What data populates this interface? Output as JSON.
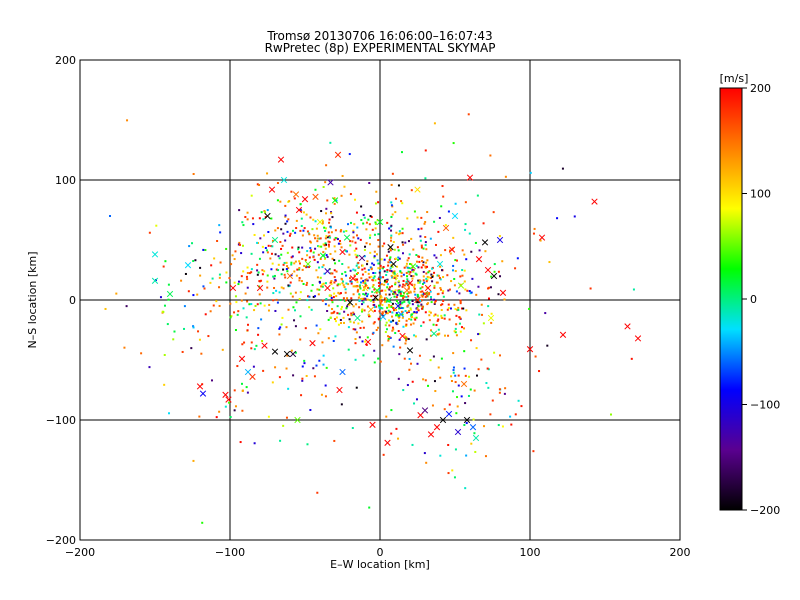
{
  "chart_data": {
    "type": "scatter",
    "title": "Tromsø 20130706 16:06:00–16:07:43",
    "subtitle": "RwPretec (8p) EXPERIMENTAL SKYMAP",
    "xlabel": "E–W location [km]",
    "ylabel": "N–S location [km]",
    "xlim": [
      -200,
      200
    ],
    "ylim": [
      -200,
      200
    ],
    "xticks": [
      -200,
      -100,
      0,
      100,
      200
    ],
    "yticks": [
      -200,
      -100,
      0,
      100,
      200
    ],
    "xtick_labels": [
      "−200",
      "−100",
      "0",
      "100",
      "200"
    ],
    "ytick_labels": [
      "−200",
      "−100",
      "0",
      "100",
      "200"
    ],
    "grid": true,
    "colorbar": {
      "label": "[m/s]",
      "range": [
        -200,
        200
      ],
      "ticks": [
        -200,
        -100,
        0,
        100,
        200
      ],
      "tick_labels": [
        "−200",
        "−100",
        "0",
        "100",
        "200"
      ],
      "colors": [
        "#000000",
        "#5a0090",
        "#0000ff",
        "#00e0ff",
        "#00ff00",
        "#ffff00",
        "#ff8000",
        "#ff0000"
      ]
    },
    "points": [
      {
        "x": -180,
        "y": 70,
        "v": -60,
        "m": "dot"
      },
      {
        "x": -150,
        "y": 38,
        "v": -20,
        "m": "x"
      },
      {
        "x": -150,
        "y": 16,
        "v": -10,
        "m": "x"
      },
      {
        "x": -140,
        "y": 5,
        "v": 10,
        "m": "x"
      },
      {
        "x": -128,
        "y": 29,
        "v": -30,
        "m": "x"
      },
      {
        "x": -120,
        "y": -72,
        "v": 200,
        "m": "x"
      },
      {
        "x": -118,
        "y": -78,
        "v": -90,
        "m": "x"
      },
      {
        "x": -112,
        "y": -67,
        "v": -150,
        "m": "dot"
      },
      {
        "x": -103,
        "y": -79,
        "v": 200,
        "m": "x"
      },
      {
        "x": -101,
        "y": -83,
        "v": 200,
        "m": "x"
      },
      {
        "x": -98,
        "y": 10,
        "v": 200,
        "m": "x"
      },
      {
        "x": -92,
        "y": -49,
        "v": 200,
        "m": "x"
      },
      {
        "x": -88,
        "y": -60,
        "v": -40,
        "m": "x"
      },
      {
        "x": -85,
        "y": -64,
        "v": 180,
        "m": "x"
      },
      {
        "x": -80,
        "y": 10,
        "v": 200,
        "m": "x"
      },
      {
        "x": -77,
        "y": -38,
        "v": 200,
        "m": "x"
      },
      {
        "x": -72,
        "y": 92,
        "v": 200,
        "m": "x"
      },
      {
        "x": -70,
        "y": -43,
        "v": -200,
        "m": "x"
      },
      {
        "x": -66,
        "y": 117,
        "v": 200,
        "m": "x"
      },
      {
        "x": -64,
        "y": 100,
        "v": -20,
        "m": "x"
      },
      {
        "x": -62,
        "y": -45,
        "v": -200,
        "m": "x"
      },
      {
        "x": -58,
        "y": -45,
        "v": -180,
        "m": "x"
      },
      {
        "x": -56,
        "y": 88,
        "v": 150,
        "m": "x"
      },
      {
        "x": -55,
        "y": -100,
        "v": 50,
        "m": "x"
      },
      {
        "x": -54,
        "y": 75,
        "v": 200,
        "m": "x"
      },
      {
        "x": -50,
        "y": 84,
        "v": 200,
        "m": "x"
      },
      {
        "x": -48,
        "y": 30,
        "v": 50,
        "m": "x"
      },
      {
        "x": -45,
        "y": -36,
        "v": 200,
        "m": "x"
      },
      {
        "x": -43,
        "y": 86,
        "v": 160,
        "m": "x"
      },
      {
        "x": -40,
        "y": 65,
        "v": 80,
        "m": "x"
      },
      {
        "x": -38,
        "y": 37,
        "v": 20,
        "m": "x"
      },
      {
        "x": -35,
        "y": 24,
        "v": -120,
        "m": "x"
      },
      {
        "x": -33,
        "y": 98,
        "v": -130,
        "m": "x"
      },
      {
        "x": -30,
        "y": 83,
        "v": 30,
        "m": "x"
      },
      {
        "x": -28,
        "y": 121,
        "v": 180,
        "m": "x"
      },
      {
        "x": -27,
        "y": -75,
        "v": 200,
        "m": "x"
      },
      {
        "x": -25,
        "y": -60,
        "v": -60,
        "m": "x"
      },
      {
        "x": -22,
        "y": 52,
        "v": 10,
        "m": "x"
      },
      {
        "x": -20,
        "y": -2,
        "v": -200,
        "m": "x"
      },
      {
        "x": -18,
        "y": 18,
        "v": 200,
        "m": "x"
      },
      {
        "x": -15,
        "y": -15,
        "v": 0,
        "m": "x"
      },
      {
        "x": -12,
        "y": 35,
        "v": -150,
        "m": "x"
      },
      {
        "x": -10,
        "y": 10,
        "v": 100,
        "m": "x"
      },
      {
        "x": -8,
        "y": -35,
        "v": 200,
        "m": "x"
      },
      {
        "x": -5,
        "y": -104,
        "v": 200,
        "m": "x"
      },
      {
        "x": -3,
        "y": 2,
        "v": -200,
        "m": "x"
      },
      {
        "x": 0,
        "y": 65,
        "v": 20,
        "m": "x"
      },
      {
        "x": 2,
        "y": -14,
        "v": -40,
        "m": "x"
      },
      {
        "x": 5,
        "y": -119,
        "v": 200,
        "m": "x"
      },
      {
        "x": 7,
        "y": 44,
        "v": -200,
        "m": "x"
      },
      {
        "x": 10,
        "y": 20,
        "v": 90,
        "m": "x"
      },
      {
        "x": 12,
        "y": -5,
        "v": -100,
        "m": "x"
      },
      {
        "x": 15,
        "y": -30,
        "v": 200,
        "m": "x"
      },
      {
        "x": 18,
        "y": 8,
        "v": 150,
        "m": "x"
      },
      {
        "x": 20,
        "y": -42,
        "v": -200,
        "m": "x"
      },
      {
        "x": 22,
        "y": 28,
        "v": 40,
        "m": "x"
      },
      {
        "x": 25,
        "y": 92,
        "v": 100,
        "m": "x"
      },
      {
        "x": 27,
        "y": -96,
        "v": 200,
        "m": "x"
      },
      {
        "x": 30,
        "y": -92,
        "v": -150,
        "m": "x"
      },
      {
        "x": 32,
        "y": 10,
        "v": 200,
        "m": "x"
      },
      {
        "x": 34,
        "y": -112,
        "v": 200,
        "m": "x"
      },
      {
        "x": 36,
        "y": -28,
        "v": 0,
        "m": "x"
      },
      {
        "x": 38,
        "y": -106,
        "v": 200,
        "m": "x"
      },
      {
        "x": 40,
        "y": 30,
        "v": -20,
        "m": "x"
      },
      {
        "x": 42,
        "y": -100,
        "v": -200,
        "m": "x"
      },
      {
        "x": 44,
        "y": 60,
        "v": 160,
        "m": "x"
      },
      {
        "x": 46,
        "y": -95,
        "v": -80,
        "m": "x"
      },
      {
        "x": 48,
        "y": 42,
        "v": 200,
        "m": "x"
      },
      {
        "x": 50,
        "y": 70,
        "v": -30,
        "m": "x"
      },
      {
        "x": 52,
        "y": -110,
        "v": -110,
        "m": "x"
      },
      {
        "x": 54,
        "y": 12,
        "v": 60,
        "m": "x"
      },
      {
        "x": 56,
        "y": -70,
        "v": 150,
        "m": "x"
      },
      {
        "x": 58,
        "y": -100,
        "v": -200,
        "m": "x"
      },
      {
        "x": 60,
        "y": 102,
        "v": 200,
        "m": "x"
      },
      {
        "x": 62,
        "y": -106,
        "v": -60,
        "m": "x"
      },
      {
        "x": 64,
        "y": -115,
        "v": -10,
        "m": "x"
      },
      {
        "x": 66,
        "y": 34,
        "v": 200,
        "m": "x"
      },
      {
        "x": 70,
        "y": 48,
        "v": -200,
        "m": "x"
      },
      {
        "x": 72,
        "y": 25,
        "v": 200,
        "m": "x"
      },
      {
        "x": 74,
        "y": -15,
        "v": 80,
        "m": "x"
      },
      {
        "x": 76,
        "y": 20,
        "v": -200,
        "m": "x"
      },
      {
        "x": 80,
        "y": 50,
        "v": -100,
        "m": "x"
      },
      {
        "x": 82,
        "y": 6,
        "v": 200,
        "m": "x"
      },
      {
        "x": 100,
        "y": -41,
        "v": 200,
        "m": "x"
      },
      {
        "x": 108,
        "y": 52,
        "v": 200,
        "m": "x"
      },
      {
        "x": 122,
        "y": -29,
        "v": 200,
        "m": "x"
      },
      {
        "x": 143,
        "y": 82,
        "v": 200,
        "m": "x"
      },
      {
        "x": 165,
        "y": -22,
        "v": 200,
        "m": "x"
      },
      {
        "x": 172,
        "y": -32,
        "v": 200,
        "m": "x"
      },
      {
        "x": 25,
        "y": 0,
        "v": 200,
        "m": "x"
      },
      {
        "x": 30,
        "y": 5,
        "v": 180,
        "m": "x"
      },
      {
        "x": 6,
        "y": 0,
        "v": 0,
        "m": "x"
      },
      {
        "x": -2,
        "y": 8,
        "v": 40,
        "m": "x"
      },
      {
        "x": 14,
        "y": -12,
        "v": -50,
        "m": "x"
      },
      {
        "x": 20,
        "y": 14,
        "v": 200,
        "m": "x"
      },
      {
        "x": -6,
        "y": -8,
        "v": 120,
        "m": "x"
      },
      {
        "x": 9,
        "y": 30,
        "v": -200,
        "m": "x"
      },
      {
        "x": -25,
        "y": 40,
        "v": 200,
        "m": "x"
      },
      {
        "x": -35,
        "y": 10,
        "v": 200,
        "m": "x"
      },
      {
        "x": -60,
        "y": 20,
        "v": 150,
        "m": "x"
      },
      {
        "x": -75,
        "y": 70,
        "v": -200,
        "m": "x"
      },
      {
        "x": -70,
        "y": 50,
        "v": 0,
        "m": "x"
      }
    ],
    "dot_clusters": [
      {
        "cx": 10,
        "cy": 5,
        "sx": 22,
        "sy": 20,
        "n": 700
      },
      {
        "cx": -45,
        "cy": 40,
        "sx": 25,
        "sy": 25,
        "n": 350
      },
      {
        "cx": -80,
        "cy": -30,
        "sx": 30,
        "sy": 40,
        "n": 120
      },
      {
        "cx": 55,
        "cy": -60,
        "sx": 20,
        "sy": 35,
        "n": 100
      },
      {
        "cx": 30,
        "cy": 60,
        "sx": 35,
        "sy": 30,
        "n": 100
      },
      {
        "cx": -110,
        "cy": 10,
        "sx": 20,
        "sy": 20,
        "n": 50
      },
      {
        "cx": 0,
        "cy": 0,
        "sx": 90,
        "sy": 70,
        "n": 160
      }
    ]
  }
}
